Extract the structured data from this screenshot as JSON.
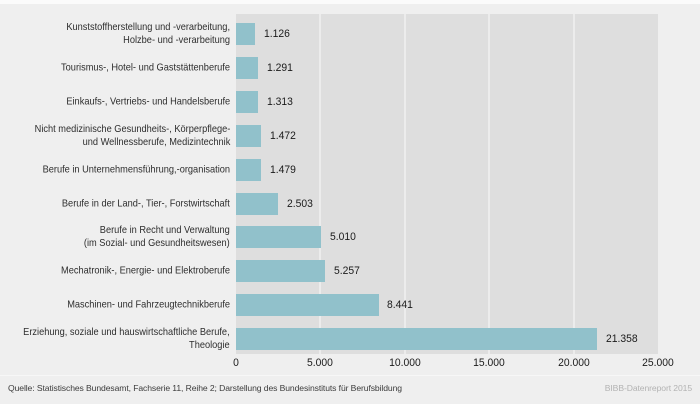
{
  "chart_data": {
    "type": "bar",
    "orientation": "horizontal",
    "title": "",
    "xlabel": "",
    "ylabel": "",
    "xlim": [
      0,
      25000
    ],
    "x_ticks": [
      "0",
      "5.000",
      "10.000",
      "15.000",
      "20.000",
      "25.000"
    ],
    "grid": "vertical-white-lines-every-5000",
    "legend": "none",
    "bar_color": "#91c1cb",
    "plot_background": "#dedede",
    "page_background": "#efefef",
    "categories": [
      [
        "Kunststoffherstellung und -verarbeitung,",
        "Holzbe- und -verarbeitung"
      ],
      [
        "Tourismus-, Hotel- und Gaststättenberufe"
      ],
      [
        "Einkaufs-, Vertriebs- und Handelsberufe"
      ],
      [
        "Nicht medizinische Gesundheits-, Körperpflege-",
        "und Wellnessberufe, Medizintechnik"
      ],
      [
        "Berufe in Unternehmensführung,-organisation"
      ],
      [
        "Berufe in der Land-, Tier-, Forstwirtschaft"
      ],
      [
        "Berufe in Recht und Verwaltung",
        "(im Sozial- und Gesundheitswesen)"
      ],
      [
        "Mechatronik-, Energie- und Elektroberufe"
      ],
      [
        "Maschinen- und Fahrzeugtechnikberufe"
      ],
      [
        "Erziehung, soziale und hauswirtschaftliche Berufe,",
        "Theologie"
      ]
    ],
    "values": [
      1126,
      1291,
      1313,
      1472,
      1479,
      2503,
      5010,
      5257,
      8441,
      21358
    ],
    "value_labels": [
      "1.126",
      "1.291",
      "1.313",
      "1.472",
      "1.479",
      "2.503",
      "5.010",
      "5.257",
      "8.441",
      "21.358"
    ]
  },
  "footer": {
    "source": "Quelle: Statistisches Bundesamt, Fachserie 11, Reihe 2; Darstellung des Bundesinstituts für Berufsbildung",
    "report": "BIBB-Datenreport 2015"
  }
}
